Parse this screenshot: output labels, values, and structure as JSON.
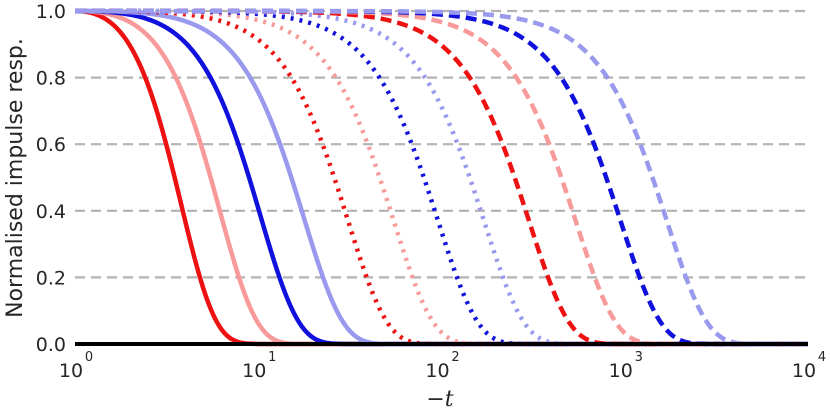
{
  "chart_data": {
    "type": "line",
    "title": "",
    "xlabel": "−t",
    "ylabel": "Normalised impulse resp.",
    "xscale": "log",
    "xlim": [
      1,
      10000
    ],
    "ylim": [
      0,
      1
    ],
    "grid": "horizontal dashed",
    "x_ticks": [
      {
        "base": "10",
        "exp": "0"
      },
      {
        "base": "10",
        "exp": "1"
      },
      {
        "base": "10",
        "exp": "2"
      },
      {
        "base": "10",
        "exp": "3"
      },
      {
        "base": "10",
        "exp": "4"
      }
    ],
    "y_ticks": [
      "0.0",
      "0.2",
      "0.4",
      "0.6",
      "0.8",
      "1.0"
    ],
    "curve_model": "y = exp(-((t-1)/tau)^2)",
    "series": [
      {
        "name": "solid-red",
        "tau": 3.0,
        "color": "#ee1111",
        "style": "solid"
      },
      {
        "name": "solid-pink",
        "tau": 5.4,
        "color": "#f89a9a",
        "style": "solid"
      },
      {
        "name": "solid-blue",
        "tau": 9.5,
        "color": "#1111dd",
        "style": "solid"
      },
      {
        "name": "solid-lightblue",
        "tau": 17,
        "color": "#9999ee",
        "style": "solid"
      },
      {
        "name": "dotted-red",
        "tau": 30,
        "color": "#ee1111",
        "style": "dotted"
      },
      {
        "name": "dotted-pink",
        "tau": 54,
        "color": "#f89a9a",
        "style": "dotted"
      },
      {
        "name": "dotted-blue",
        "tau": 95,
        "color": "#1111dd",
        "style": "dotted"
      },
      {
        "name": "dotted-lightblue",
        "tau": 170,
        "color": "#9999ee",
        "style": "dotted"
      },
      {
        "name": "dashed-red",
        "tau": 300,
        "color": "#ee1111",
        "style": "dashed"
      },
      {
        "name": "dashed-pink",
        "tau": 540,
        "color": "#f89a9a",
        "style": "dashed"
      },
      {
        "name": "dashed-blue",
        "tau": 950,
        "color": "#1111dd",
        "style": "dashed"
      },
      {
        "name": "dashed-lightblue",
        "tau": 1700,
        "color": "#9999ee",
        "style": "dashed"
      },
      {
        "name": "baseline",
        "tau": 0,
        "color": "#000000",
        "style": "solid"
      }
    ]
  }
}
